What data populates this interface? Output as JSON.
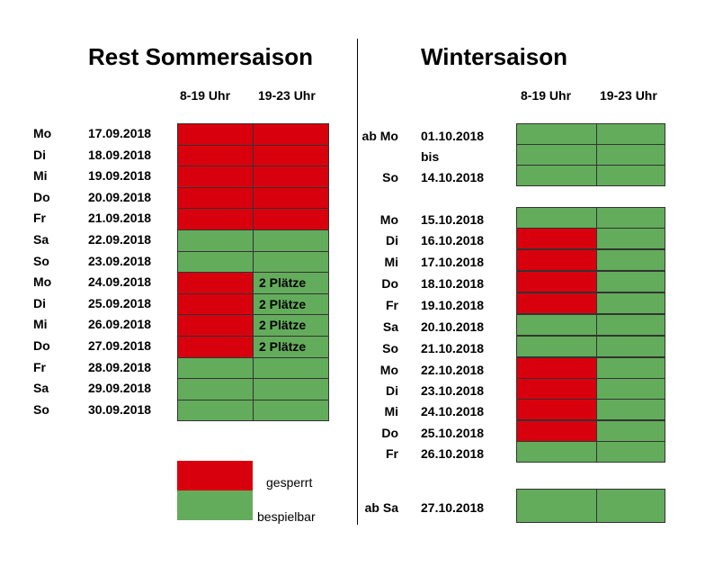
{
  "colors": {
    "blocked": "#d9000d",
    "playable": "#63ac5b",
    "border": "#333333"
  },
  "summer": {
    "title": "Rest Sommersaison",
    "col_headers": [
      "8-19 Uhr",
      "19-23 Uhr"
    ],
    "rows": [
      {
        "day": "Mo",
        "date": "17.09.2018",
        "slot1": "gesperrt",
        "slot2": "gesperrt",
        "slot2_note": ""
      },
      {
        "day": "Di",
        "date": "18.09.2018",
        "slot1": "gesperrt",
        "slot2": "gesperrt",
        "slot2_note": ""
      },
      {
        "day": "Mi",
        "date": "19.09.2018",
        "slot1": "gesperrt",
        "slot2": "gesperrt",
        "slot2_note": ""
      },
      {
        "day": "Do",
        "date": "20.09.2018",
        "slot1": "gesperrt",
        "slot2": "gesperrt",
        "slot2_note": ""
      },
      {
        "day": "Fr",
        "date": "21.09.2018",
        "slot1": "gesperrt",
        "slot2": "gesperrt",
        "slot2_note": ""
      },
      {
        "day": "Sa",
        "date": "22.09.2018",
        "slot1": "bespielbar",
        "slot2": "bespielbar",
        "slot2_note": ""
      },
      {
        "day": "So",
        "date": "23.09.2018",
        "slot1": "bespielbar",
        "slot2": "bespielbar",
        "slot2_note": ""
      },
      {
        "day": "Mo",
        "date": "24.09.2018",
        "slot1": "gesperrt",
        "slot2": "bespielbar",
        "slot2_note": "2 Plätze"
      },
      {
        "day": "Di",
        "date": "25.09.2018",
        "slot1": "gesperrt",
        "slot2": "bespielbar",
        "slot2_note": "2 Plätze"
      },
      {
        "day": "Mi",
        "date": "26.09.2018",
        "slot1": "gesperrt",
        "slot2": "bespielbar",
        "slot2_note": "2 Plätze"
      },
      {
        "day": "Do",
        "date": "27.09.2018",
        "slot1": "gesperrt",
        "slot2": "bespielbar",
        "slot2_note": "2 Plätze"
      },
      {
        "day": "Fr",
        "date": "28.09.2018",
        "slot1": "bespielbar",
        "slot2": "bespielbar",
        "slot2_note": ""
      },
      {
        "day": "Sa",
        "date": "29.09.2018",
        "slot1": "bespielbar",
        "slot2": "bespielbar",
        "slot2_note": ""
      },
      {
        "day": "So",
        "date": "30.09.2018",
        "slot1": "bespielbar",
        "slot2": "bespielbar",
        "slot2_note": ""
      }
    ]
  },
  "winter": {
    "title": "Wintersaison",
    "col_headers": [
      "8-19 Uhr",
      "19-23 Uhr"
    ],
    "rows": [
      {
        "day": "ab Mo",
        "date": "01.10.2018",
        "slot1": "bespielbar",
        "slot2": "bespielbar"
      },
      {
        "day": "",
        "date": "bis",
        "slot1": "bespielbar",
        "slot2": "bespielbar"
      },
      {
        "day": "So",
        "date": "14.10.2018",
        "slot1": "bespielbar",
        "slot2": "bespielbar"
      },
      {
        "day": "Mo",
        "date": "15.10.2018",
        "slot1": "bespielbar",
        "slot2": "bespielbar"
      },
      {
        "day": "Di",
        "date": "16.10.2018",
        "slot1": "gesperrt",
        "slot2": "bespielbar"
      },
      {
        "day": "Mi",
        "date": "17.10.2018",
        "slot1": "gesperrt",
        "slot2": "bespielbar"
      },
      {
        "day": "Do",
        "date": "18.10.2018",
        "slot1": "gesperrt",
        "slot2": "bespielbar"
      },
      {
        "day": "Fr",
        "date": "19.10.2018",
        "slot1": "gesperrt",
        "slot2": "bespielbar"
      },
      {
        "day": "Sa",
        "date": "20.10.2018",
        "slot1": "bespielbar",
        "slot2": "bespielbar"
      },
      {
        "day": "So",
        "date": "21.10.2018",
        "slot1": "bespielbar",
        "slot2": "bespielbar"
      },
      {
        "day": "Mo",
        "date": "22.10.2018",
        "slot1": "gesperrt",
        "slot2": "bespielbar"
      },
      {
        "day": "Di",
        "date": "23.10.2018",
        "slot1": "gesperrt",
        "slot2": "bespielbar"
      },
      {
        "day": "Mi",
        "date": "24.10.2018",
        "slot1": "gesperrt",
        "slot2": "bespielbar"
      },
      {
        "day": "Do",
        "date": "25.10.2018",
        "slot1": "gesperrt",
        "slot2": "bespielbar"
      },
      {
        "day": "Fr",
        "date": "26.10.2018",
        "slot1": "bespielbar",
        "slot2": "bespielbar"
      },
      {
        "day": "ab Sa",
        "date": "27.10.2018",
        "slot1": "bespielbar",
        "slot2": "bespielbar"
      }
    ]
  },
  "legend": {
    "blocked_label": "gesperrt",
    "playable_label": "bespielbar"
  }
}
